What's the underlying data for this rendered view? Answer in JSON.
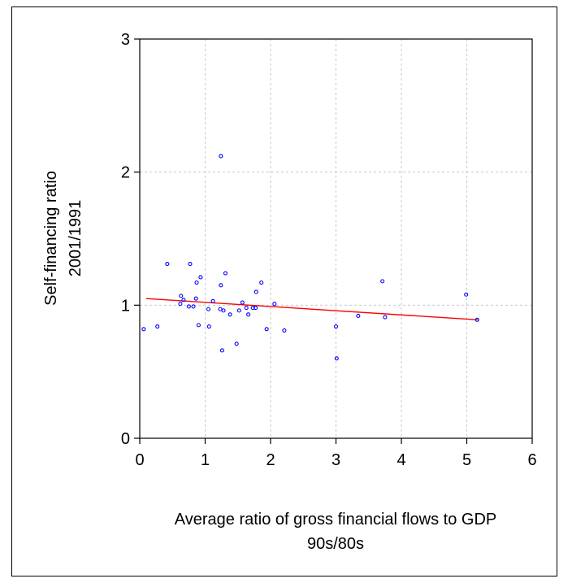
{
  "chart_data": {
    "type": "scatter",
    "title": "",
    "xlabel": [
      "Average ratio of gross financial flows to GDP",
      "90s/80s"
    ],
    "ylabel": [
      "Self-financing ratio",
      "2001/1991"
    ],
    "xlim": [
      0,
      6
    ],
    "ylim": [
      0,
      3
    ],
    "xticks": [
      "0",
      "1",
      "2",
      "3",
      "4",
      "5",
      "6"
    ],
    "yticks": [
      "0",
      "1",
      "2",
      "3"
    ],
    "grid": true,
    "colors": {
      "points": "#0000ff",
      "fit_line": "#ff0000",
      "grid": "#c8c8c8",
      "axis": "#000000"
    },
    "points": [
      {
        "x": 0.06,
        "y": 0.82
      },
      {
        "x": 0.27,
        "y": 0.84
      },
      {
        "x": 0.42,
        "y": 1.31
      },
      {
        "x": 0.62,
        "y": 1.01
      },
      {
        "x": 0.63,
        "y": 1.07
      },
      {
        "x": 0.67,
        "y": 1.04
      },
      {
        "x": 0.75,
        "y": 0.99
      },
      {
        "x": 0.77,
        "y": 1.31
      },
      {
        "x": 0.82,
        "y": 0.99
      },
      {
        "x": 0.86,
        "y": 1.05
      },
      {
        "x": 0.87,
        "y": 1.17
      },
      {
        "x": 0.9,
        "y": 0.85
      },
      {
        "x": 0.93,
        "y": 1.21
      },
      {
        "x": 1.05,
        "y": 0.97
      },
      {
        "x": 1.06,
        "y": 0.84
      },
      {
        "x": 1.12,
        "y": 1.03
      },
      {
        "x": 1.23,
        "y": 0.97
      },
      {
        "x": 1.24,
        "y": 1.15
      },
      {
        "x": 1.24,
        "y": 2.12
      },
      {
        "x": 1.26,
        "y": 0.66
      },
      {
        "x": 1.28,
        "y": 0.96
      },
      {
        "x": 1.31,
        "y": 1.24
      },
      {
        "x": 1.38,
        "y": 0.93
      },
      {
        "x": 1.48,
        "y": 0.71
      },
      {
        "x": 1.52,
        "y": 0.96
      },
      {
        "x": 1.57,
        "y": 1.02
      },
      {
        "x": 1.63,
        "y": 0.98
      },
      {
        "x": 1.66,
        "y": 0.93
      },
      {
        "x": 1.73,
        "y": 0.98
      },
      {
        "x": 1.77,
        "y": 0.98
      },
      {
        "x": 1.78,
        "y": 1.1
      },
      {
        "x": 1.86,
        "y": 1.17
      },
      {
        "x": 1.94,
        "y": 0.82
      },
      {
        "x": 2.06,
        "y": 1.01
      },
      {
        "x": 2.21,
        "y": 0.81
      },
      {
        "x": 3.0,
        "y": 0.84
      },
      {
        "x": 3.01,
        "y": 0.6
      },
      {
        "x": 3.34,
        "y": 0.92
      },
      {
        "x": 3.71,
        "y": 1.18
      },
      {
        "x": 3.75,
        "y": 0.91
      },
      {
        "x": 4.99,
        "y": 1.08
      },
      {
        "x": 5.16,
        "y": 0.89
      }
    ],
    "fit_line": {
      "x": [
        0.1,
        5.17
      ],
      "y": [
        1.05,
        0.89
      ]
    }
  }
}
